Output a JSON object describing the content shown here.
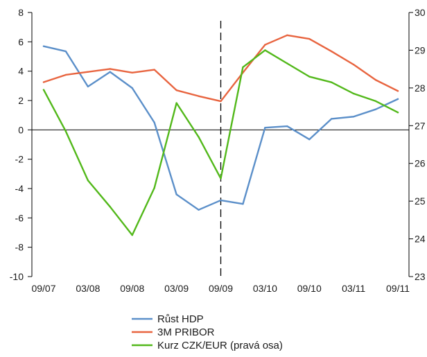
{
  "chart_data": {
    "type": "line",
    "title": "",
    "x": [
      "09/07",
      "12/07",
      "03/08",
      "06/08",
      "09/08",
      "12/08",
      "03/09",
      "06/09",
      "09/09",
      "12/09",
      "03/10",
      "06/10",
      "09/10",
      "12/10",
      "03/11",
      "06/11",
      "09/11"
    ],
    "x_tick_labels": [
      "09/07",
      "03/08",
      "09/08",
      "03/09",
      "09/09",
      "03/10",
      "09/10",
      "03/11",
      "09/11"
    ],
    "left_axis": {
      "ylim": [
        -10,
        8
      ],
      "ticks": [
        -10,
        -8,
        -6,
        -4,
        -2,
        0,
        2,
        4,
        6,
        8
      ]
    },
    "right_axis": {
      "ylim": [
        23,
        30
      ],
      "ticks": [
        23,
        24,
        25,
        26,
        27,
        28,
        29,
        30
      ]
    },
    "vertical_marker": {
      "x": "09/09",
      "style": "dashed"
    },
    "series": [
      {
        "name": "Růst HDP",
        "axis": "left",
        "color": "#5b8fc9",
        "values": [
          5.7,
          5.35,
          2.95,
          3.95,
          2.85,
          0.5,
          -4.4,
          -5.45,
          -4.8,
          -5.05,
          0.15,
          0.25,
          -0.65,
          0.75,
          0.9,
          1.4,
          2.1
        ]
      },
      {
        "name": "3M PRIBOR",
        "axis": "left",
        "color": "#e8643f",
        "values": [
          3.25,
          3.75,
          3.95,
          4.15,
          3.9,
          4.1,
          2.7,
          2.3,
          1.95,
          3.9,
          5.8,
          6.45,
          6.2,
          5.35,
          4.45,
          3.4,
          2.65
        ]
      },
      {
        "name": "Kurz CZK/EUR (pravá osa)",
        "axis": "right",
        "color": "#52b81a",
        "values": [
          27.95,
          26.85,
          25.55,
          24.85,
          24.1,
          25.35,
          27.6,
          26.7,
          25.6,
          28.55,
          29.0,
          28.65,
          28.3,
          28.15,
          27.85,
          27.65,
          27.35
        ]
      }
    ],
    "legend": {
      "position": "bottom"
    },
    "grid": false
  }
}
